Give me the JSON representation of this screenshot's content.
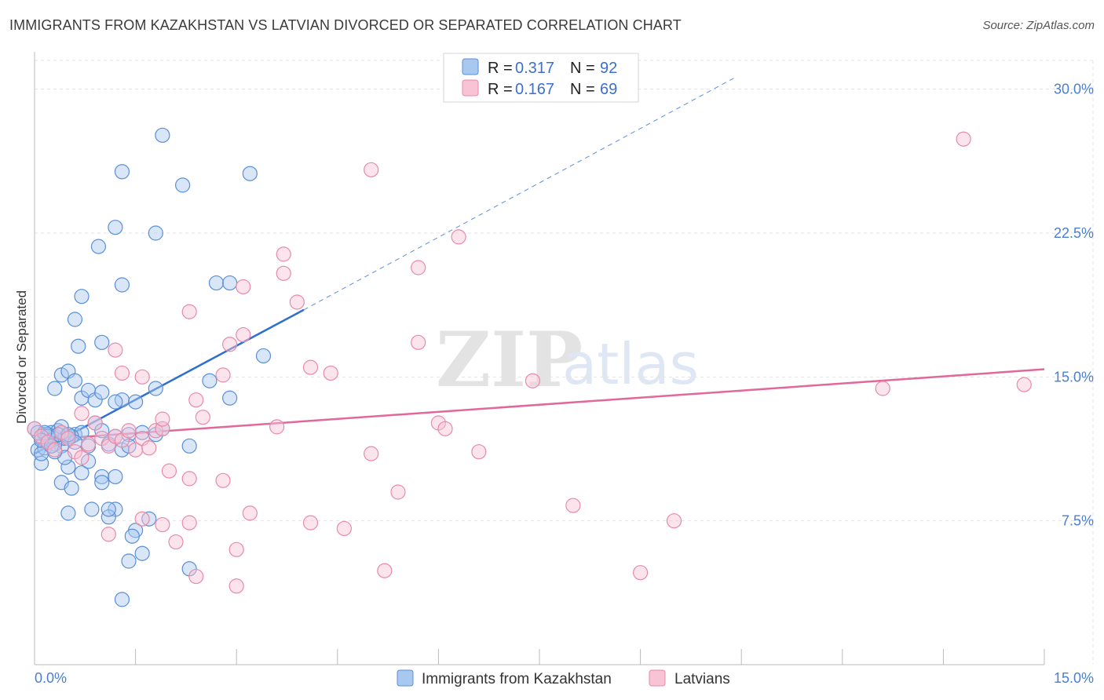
{
  "title": "IMMIGRANTS FROM KAZAKHSTAN VS LATVIAN DIVORCED OR SEPARATED CORRELATION CHART",
  "source": "Source: ZipAtlas.com",
  "watermark": {
    "zip": "ZIP",
    "atlas": "atlas"
  },
  "legend_top": [
    {
      "r_label": "R =",
      "r_value": "0.317",
      "n_label": "N =",
      "n_value": "92"
    },
    {
      "r_label": "R =",
      "r_value": "0.167",
      "n_label": "N =",
      "n_value": "69"
    }
  ],
  "legend_bottom": [
    {
      "label": "Immigrants from Kazakhstan"
    },
    {
      "label": "Latvians"
    }
  ],
  "colors": {
    "blue_fill": "#a9c8f0",
    "blue_stroke": "#5a8fd8",
    "blue_line": "#2f6fd0",
    "pink_fill": "#f8c3d4",
    "pink_stroke": "#e88aa8",
    "pink_line": "#e0689a",
    "grid": "#e3e3e3",
    "tick_text": "#4a7fd0"
  },
  "chart_data": {
    "type": "scatter",
    "title": "IMMIGRANTS FROM KAZAKHSTAN VS LATVIAN DIVORCED OR SEPARATED CORRELATION CHART",
    "xlabel": "",
    "ylabel": "Divorced or Separated",
    "xlim": [
      0,
      15
    ],
    "ylim": [
      0,
      31.5
    ],
    "x_tick_labels": [
      "0.0%",
      "15.0%"
    ],
    "y_ticks": [
      7.5,
      15.0,
      22.5,
      30.0
    ],
    "y_tick_labels": [
      "7.5%",
      "15.0%",
      "22.5%",
      "30.0%"
    ],
    "grid": true,
    "series": [
      {
        "name": "Immigrants from Kazakhstan",
        "trend": {
          "x": [
            0.0,
            4.0
          ],
          "y": [
            11.0,
            18.5
          ],
          "dashed_to": [
            10.4,
            30.6
          ]
        },
        "points": [
          [
            0.0,
            12.3
          ],
          [
            0.05,
            11.2
          ],
          [
            0.1,
            10.5
          ],
          [
            0.1,
            11.8
          ],
          [
            0.15,
            12.0
          ],
          [
            0.2,
            11.6
          ],
          [
            0.25,
            12.1
          ],
          [
            0.3,
            11.9
          ],
          [
            0.35,
            12.2
          ],
          [
            0.4,
            11.4
          ],
          [
            0.45,
            11.8
          ],
          [
            0.5,
            11.9
          ],
          [
            0.2,
            12.0
          ],
          [
            0.3,
            11.5
          ],
          [
            0.15,
            11.3
          ],
          [
            0.25,
            11.7
          ],
          [
            0.4,
            12.4
          ],
          [
            0.6,
            12.0
          ],
          [
            0.7,
            12.1
          ],
          [
            0.8,
            11.4
          ],
          [
            0.9,
            12.6
          ],
          [
            1.0,
            12.2
          ],
          [
            1.1,
            11.5
          ],
          [
            1.2,
            11.9
          ],
          [
            1.3,
            11.2
          ],
          [
            1.4,
            12.0
          ],
          [
            1.6,
            12.1
          ],
          [
            1.8,
            12.0
          ],
          [
            1.9,
            12.3
          ],
          [
            2.3,
            11.4
          ],
          [
            0.3,
            14.4
          ],
          [
            0.4,
            15.1
          ],
          [
            0.5,
            15.3
          ],
          [
            0.6,
            14.8
          ],
          [
            0.7,
            13.9
          ],
          [
            0.8,
            14.3
          ],
          [
            0.9,
            13.8
          ],
          [
            1.0,
            14.2
          ],
          [
            1.3,
            13.8
          ],
          [
            1.5,
            13.7
          ],
          [
            0.65,
            16.6
          ],
          [
            1.0,
            16.8
          ],
          [
            1.2,
            13.7
          ],
          [
            1.8,
            14.4
          ],
          [
            2.6,
            14.8
          ],
          [
            2.9,
            13.9
          ],
          [
            3.4,
            16.1
          ],
          [
            0.6,
            18.0
          ],
          [
            0.7,
            19.2
          ],
          [
            1.3,
            19.8
          ],
          [
            0.95,
            21.8
          ],
          [
            1.2,
            22.8
          ],
          [
            1.8,
            22.5
          ],
          [
            2.7,
            19.9
          ],
          [
            2.9,
            19.9
          ],
          [
            1.3,
            25.7
          ],
          [
            2.2,
            25.0
          ],
          [
            3.2,
            25.6
          ],
          [
            1.9,
            27.6
          ],
          [
            0.4,
            9.5
          ],
          [
            0.5,
            10.3
          ],
          [
            0.55,
            9.2
          ],
          [
            0.7,
            10.0
          ],
          [
            0.8,
            10.6
          ],
          [
            0.5,
            7.9
          ],
          [
            0.85,
            8.1
          ],
          [
            1.0,
            9.8
          ],
          [
            1.0,
            9.5
          ],
          [
            1.2,
            9.8
          ],
          [
            1.2,
            8.1
          ],
          [
            1.1,
            7.7
          ],
          [
            1.1,
            8.1
          ],
          [
            1.4,
            11.4
          ],
          [
            1.5,
            7.0
          ],
          [
            1.6,
            5.8
          ],
          [
            1.45,
            6.7
          ],
          [
            1.4,
            5.4
          ],
          [
            1.7,
            7.6
          ],
          [
            2.3,
            5.0
          ],
          [
            1.3,
            3.4
          ],
          [
            0.05,
            12.1
          ],
          [
            0.1,
            11.0
          ],
          [
            0.35,
            12.0
          ],
          [
            0.55,
            11.9
          ],
          [
            0.45,
            10.8
          ],
          [
            0.6,
            11.6
          ],
          [
            0.3,
            11.1
          ],
          [
            0.2,
            11.9
          ],
          [
            0.15,
            12.1
          ],
          [
            0.1,
            11.7
          ],
          [
            0.25,
            11.4
          ],
          [
            0.5,
            12.0
          ]
        ]
      },
      {
        "name": "Latvians",
        "trend": {
          "x": [
            0.0,
            15.0
          ],
          "y": [
            11.7,
            15.4
          ]
        },
        "points": [
          [
            0.0,
            12.3
          ],
          [
            0.1,
            11.9
          ],
          [
            0.2,
            11.6
          ],
          [
            0.3,
            11.2
          ],
          [
            0.4,
            12.1
          ],
          [
            0.5,
            11.8
          ],
          [
            0.6,
            11.1
          ],
          [
            0.7,
            10.8
          ],
          [
            0.8,
            11.5
          ],
          [
            0.9,
            12.6
          ],
          [
            1.0,
            11.8
          ],
          [
            1.1,
            11.4
          ],
          [
            1.2,
            11.9
          ],
          [
            1.3,
            11.7
          ],
          [
            1.4,
            12.2
          ],
          [
            1.5,
            11.2
          ],
          [
            1.6,
            11.8
          ],
          [
            1.7,
            11.3
          ],
          [
            1.8,
            12.2
          ],
          [
            1.9,
            12.3
          ],
          [
            0.7,
            13.1
          ],
          [
            1.2,
            16.4
          ],
          [
            1.3,
            15.2
          ],
          [
            1.6,
            15.0
          ],
          [
            1.9,
            12.8
          ],
          [
            2.4,
            13.8
          ],
          [
            2.5,
            12.9
          ],
          [
            2.8,
            15.1
          ],
          [
            2.9,
            16.7
          ],
          [
            3.1,
            17.2
          ],
          [
            2.3,
            18.4
          ],
          [
            3.1,
            19.7
          ],
          [
            3.7,
            20.4
          ],
          [
            3.7,
            21.4
          ],
          [
            3.9,
            18.9
          ],
          [
            4.1,
            15.5
          ],
          [
            4.4,
            15.2
          ],
          [
            5.0,
            25.8
          ],
          [
            5.7,
            16.8
          ],
          [
            5.7,
            20.7
          ],
          [
            6.0,
            12.6
          ],
          [
            6.1,
            12.3
          ],
          [
            6.3,
            22.3
          ],
          [
            7.4,
            14.8
          ],
          [
            12.6,
            14.4
          ],
          [
            13.8,
            27.4
          ],
          [
            14.7,
            14.6
          ],
          [
            1.1,
            6.8
          ],
          [
            1.6,
            7.6
          ],
          [
            1.9,
            7.3
          ],
          [
            2.0,
            10.1
          ],
          [
            2.1,
            6.4
          ],
          [
            2.3,
            9.7
          ],
          [
            2.3,
            7.4
          ],
          [
            2.4,
            4.6
          ],
          [
            2.8,
            9.6
          ],
          [
            3.0,
            6.0
          ],
          [
            3.0,
            4.1
          ],
          [
            3.2,
            7.9
          ],
          [
            3.6,
            12.4
          ],
          [
            4.1,
            7.4
          ],
          [
            4.6,
            7.1
          ],
          [
            5.0,
            11.0
          ],
          [
            5.2,
            4.9
          ],
          [
            5.4,
            9.0
          ],
          [
            6.6,
            11.1
          ],
          [
            8.0,
            8.3
          ],
          [
            9.0,
            4.8
          ],
          [
            9.5,
            7.5
          ]
        ]
      }
    ]
  }
}
